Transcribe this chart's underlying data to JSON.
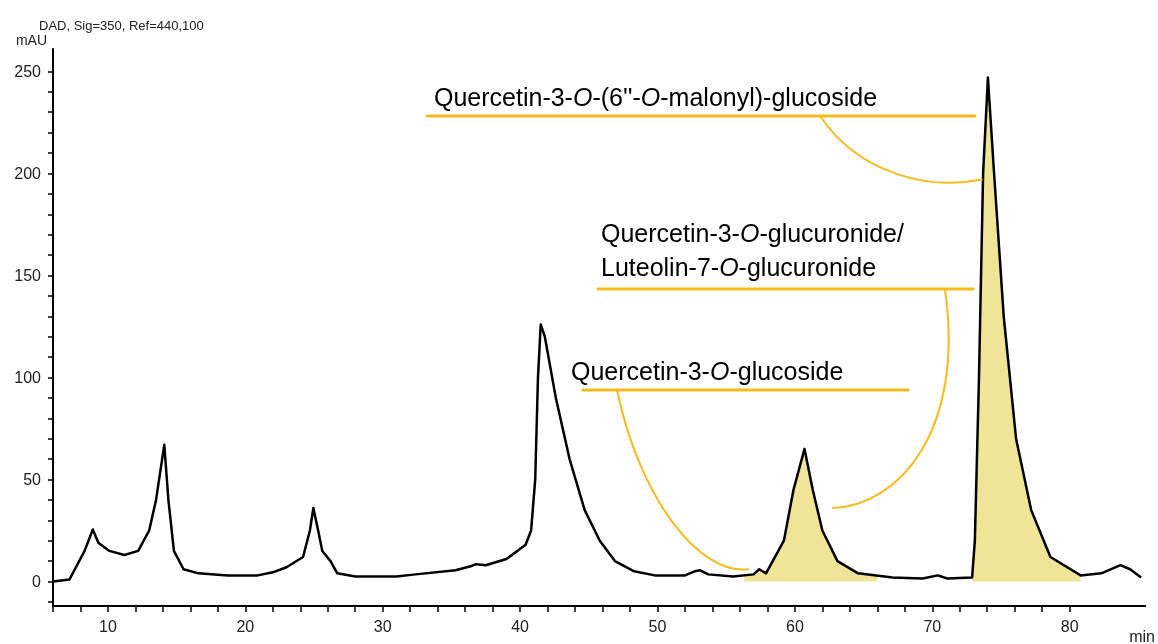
{
  "chart_data": {
    "type": "line",
    "title": "DAD, Sig=350, Ref=440,100",
    "ylabel": "mAU",
    "xlabel": "min",
    "xlim": [
      6,
      85.5
    ],
    "xticks": [
      10,
      20,
      30,
      40,
      50,
      60,
      70,
      80
    ],
    "ylim": [
      -12,
      261
    ],
    "yticks": [
      0,
      50,
      100,
      150,
      200,
      250
    ],
    "series": [
      {
        "type": "area",
        "color": "#f0e496",
        "x": [
          56.3,
          57,
          57.4,
          57.9
        ],
        "values": [
          2.5,
          3.5,
          6,
          4
        ]
      },
      {
        "type": "area",
        "color": "#f0e496",
        "x": [
          57.9,
          59.2,
          59.9,
          60.7,
          61.3,
          62,
          63.1,
          64.6,
          66
        ],
        "values": [
          4,
          20,
          45,
          65,
          45,
          25,
          10,
          4,
          2.5
        ]
      },
      {
        "type": "area",
        "color": "#f0e496",
        "x": [
          72.9,
          73.1,
          73.4,
          73.7,
          74.05,
          74.5,
          75.2,
          76.1,
          77.2,
          78.6,
          80.8
        ],
        "values": [
          2,
          20,
          100,
          200,
          247,
          200,
          130,
          70,
          35,
          12,
          3
        ]
      },
      {
        "type": "line",
        "color": "#000000",
        "x": [
          6,
          7.2,
          8.3,
          8.9,
          9.3,
          10.1,
          11.2,
          12.2,
          13,
          13.5,
          14.1,
          14.4,
          14.8,
          15.5,
          16.6,
          18.7,
          20.9,
          22,
          23,
          24.2,
          24.7,
          24.95,
          25.3,
          25.6,
          26.2,
          26.7,
          28,
          31,
          32.4,
          35.3,
          36.4,
          36.8,
          37.5,
          39,
          40.4,
          40.8,
          41.1,
          41.3,
          41.5,
          41.8,
          42.6,
          43.6,
          44.7,
          45.8,
          46.9,
          48.3,
          49.8,
          52,
          52.7,
          53.1,
          53.7,
          55.5,
          57,
          57.4,
          57.9,
          59.2,
          59.9,
          60.7,
          61.3,
          62,
          63.1,
          64.6,
          67.1,
          69.3,
          70.4,
          71.1,
          72.9,
          73.1,
          73.4,
          73.7,
          74.05,
          74.5,
          75.2,
          76.1,
          77.2,
          78.6,
          80.8,
          82.3,
          83.7,
          84.4,
          85.2
        ],
        "values": [
          0,
          1,
          15,
          25.5,
          19,
          15,
          13,
          15,
          25,
          40,
          67,
          40,
          15,
          6,
          4,
          3,
          3,
          4.5,
          7,
          12,
          25,
          36,
          25,
          15,
          10,
          4,
          2.5,
          2.5,
          3.5,
          5.5,
          7.5,
          8.5,
          8,
          11,
          18,
          25,
          50,
          100,
          126,
          120,
          90,
          60,
          35,
          20,
          10,
          5,
          3,
          3,
          5,
          5.5,
          3.5,
          2.5,
          3.5,
          6,
          4,
          20,
          45,
          65,
          45,
          25,
          10,
          4,
          2,
          1.5,
          3,
          1.5,
          2,
          20,
          100,
          200,
          247,
          200,
          130,
          70,
          35,
          12,
          3,
          4,
          8,
          6,
          2
        ]
      }
    ],
    "annotations": [
      {
        "text": "Quercetin-3-O-glucoside",
        "x": 56.6,
        "y": 6
      },
      "Quercetin-3-O-glucuronide/",
      "Luteolin-7-O-glucuronide",
      {
        "text": "Quercetin-3-O-(6''-O-malonyl)-glucoside",
        "x": 73.6,
        "y": 197
      }
    ]
  }
}
